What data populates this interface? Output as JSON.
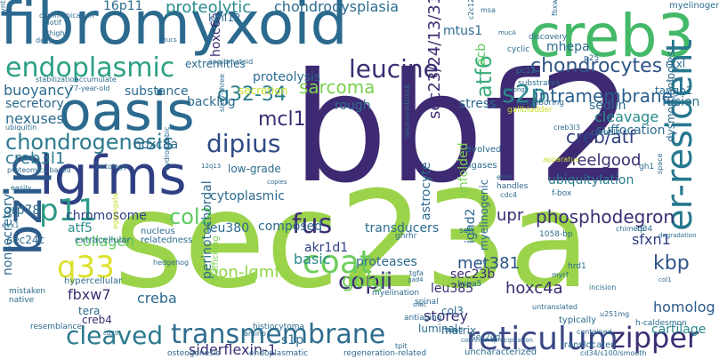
{
  "words": [
    {
      "text": "sec23a",
      "color": "#9bd34a",
      "rotated": false
    },
    {
      "text": "bbf2",
      "color": "#3e2a72",
      "rotated": false
    },
    {
      "text": "fibromyxoid",
      "color": "#2b6a8e",
      "rotated": false
    },
    {
      "text": "oasis",
      "color": "#2b6a8e",
      "rotated": false
    },
    {
      "text": "lgfms",
      "color": "#2f3f83",
      "rotated": false
    },
    {
      "text": "creb3",
      "color": "#44b968",
      "rotated": false
    },
    {
      "text": "bzip",
      "color": "#2c5a8a",
      "rotated": true
    },
    {
      "text": "reticulum",
      "color": "#3a4584",
      "rotated": false
    },
    {
      "text": "transmembrane",
      "color": "#2e6d8e",
      "rotated": false
    },
    {
      "text": "coat",
      "color": "#6ccd5a",
      "rotated": false
    },
    {
      "text": "er-resident",
      "color": "#26788e",
      "rotated": true
    },
    {
      "text": "endoplasmic",
      "color": "#2ca084",
      "rotated": false
    },
    {
      "text": "leucine",
      "color": "#3a2e73",
      "rotated": false
    },
    {
      "text": "atf6",
      "color": "#37ad79",
      "rotated": true
    },
    {
      "text": "s2p",
      "color": "#2a8b8c",
      "rotated": false
    },
    {
      "text": "dipius",
      "color": "#2f4b86",
      "rotated": false
    },
    {
      "text": "p11",
      "color": "#2b9a88",
      "rotated": false
    },
    {
      "text": "q33",
      "color": "#dbe12b",
      "rotated": false
    },
    {
      "text": "fus",
      "color": "#3a2e73",
      "rotated": false
    },
    {
      "text": "zipper",
      "color": "#3a2e73",
      "rotated": false
    },
    {
      "text": "cleaved",
      "color": "#2c7a8e",
      "rotated": false
    },
    {
      "text": "chondrogenesis",
      "color": "#2c7a8e",
      "rotated": false
    },
    {
      "text": "chondrocytes",
      "color": "#2f5488",
      "rotated": false
    },
    {
      "text": "intramembrane",
      "color": "#2a5f8d",
      "rotated": false
    },
    {
      "text": "q32-34",
      "color": "#2b7d8e",
      "rotated": false
    },
    {
      "text": "copii",
      "color": "#3a2e73",
      "rotated": false
    },
    {
      "text": "kbp",
      "color": "#2f5488",
      "rotated": false
    },
    {
      "text": "col2",
      "color": "#5ec962",
      "rotated": false
    },
    {
      "text": "golgi",
      "color": "#6ccd5a",
      "rotated": false
    },
    {
      "text": "sarcoma",
      "color": "#7ad151",
      "rotated": false
    },
    {
      "text": "mcl1",
      "color": "#3a2e73",
      "rotated": false
    },
    {
      "text": "creb3l1",
      "color": "#2c7a8e",
      "rotated": false
    },
    {
      "text": "creb/atf",
      "color": "#2f3f83",
      "rotated": false
    },
    {
      "text": "phosphodegron",
      "color": "#3a2e73",
      "rotated": false
    },
    {
      "text": "proteolytic",
      "color": "#2a8b8c",
      "rotated": false
    },
    {
      "text": "chondrodysplasia",
      "color": "#2c6b8e",
      "rotated": false
    },
    {
      "text": "sec23/24/13/31",
      "color": "#3e2a72",
      "rotated": true
    },
    {
      "text": "hoxc6a",
      "color": "#3a2e73",
      "rotated": true
    },
    {
      "text": "non-lgmfs",
      "color": "#8fd645",
      "rotated": false
    },
    {
      "text": "homolog",
      "color": "#2c5a8a",
      "rotated": false
    },
    {
      "text": "cartilage",
      "color": "#2a8b8c",
      "rotated": false
    },
    {
      "text": "siderflexin-1",
      "color": "#3a2e73",
      "rotated": false
    },
    {
      "text": "storey",
      "color": "#3a2e73",
      "rotated": false
    },
    {
      "text": "basic",
      "color": "#2a8b8c",
      "rotated": false
    },
    {
      "text": "feelgood",
      "color": "#3a2e73",
      "rotated": false
    },
    {
      "text": "cleavage",
      "color": "#2a8b8c",
      "rotated": false
    },
    {
      "text": "ubiquitylation",
      "color": "#2b7d8e",
      "rotated": false
    },
    {
      "text": "unfolded",
      "color": "#7ad151",
      "rotated": true
    },
    {
      "text": "creba",
      "color": "#2c6b8e",
      "rotated": false
    },
    {
      "text": "s1p",
      "color": "#2c6b8e",
      "rotated": false
    },
    {
      "text": "met381",
      "color": "#2f5488",
      "rotated": false
    },
    {
      "text": "hoxc4a",
      "color": "#3a2e73",
      "rotated": false
    },
    {
      "text": "fbxw7",
      "color": "#3a2e73",
      "rotated": false
    },
    {
      "text": "atf5",
      "color": "#2a8b8c",
      "rotated": false
    },
    {
      "text": "upr",
      "color": "#3a2e73",
      "rotated": false
    },
    {
      "text": "sfxn1",
      "color": "#2f3f83",
      "rotated": false
    },
    {
      "text": "collagen",
      "color": "#5ec962",
      "rotated": false
    },
    {
      "text": "nexuses",
      "color": "#2c6b8e",
      "rotated": false
    },
    {
      "text": "secretory",
      "color": "#2c6b8e",
      "rotated": false
    },
    {
      "text": "buoyancy",
      "color": "#2c6b8e",
      "rotated": false
    },
    {
      "text": "substance",
      "color": "#2c6b8e",
      "rotated": false
    },
    {
      "text": "proteolysis",
      "color": "#2c6b8e",
      "rotated": false
    },
    {
      "text": "rough",
      "color": "#2c6b8e",
      "rotated": false
    },
    {
      "text": "stress",
      "color": "#2c6b8e",
      "rotated": false
    },
    {
      "text": "suffocation",
      "color": "#2c6b8e",
      "rotated": false
    },
    {
      "text": "backlog",
      "color": "#2c6b8e",
      "rotated": false
    },
    {
      "text": "sedlin",
      "color": "#2c6b8e",
      "rotated": false
    },
    {
      "text": "fusion",
      "color": "#2c6b8e",
      "rotated": false
    },
    {
      "text": "tango1",
      "color": "#2c6b8e",
      "rotated": false
    },
    {
      "text": "mhepa",
      "color": "#2c6b8e",
      "rotated": false
    },
    {
      "text": "mtus1",
      "color": "#2c6b8e",
      "rotated": false
    },
    {
      "text": "klhl12",
      "color": "#2c6b8e",
      "rotated": false
    },
    {
      "text": "16p11",
      "color": "#2c6b8e",
      "rotated": false
    },
    {
      "text": "extremities",
      "color": "#2c6b8e",
      "rotated": false
    },
    {
      "text": "secretion",
      "color": "#c6df2a",
      "rotated": false
    },
    {
      "text": "hoxc8a",
      "color": "#2c6b8e",
      "rotated": false
    },
    {
      "text": "low-grade",
      "color": "#2c6b8e",
      "rotated": false
    },
    {
      "text": "chromosome",
      "color": "#2f3f83",
      "rotated": false
    },
    {
      "text": "sec24c",
      "color": "#2c6b8e",
      "rotated": false
    },
    {
      "text": "grp78",
      "color": "#2c6b8e",
      "rotated": false
    },
    {
      "text": "cytoplasmic",
      "color": "#2c6b8e",
      "rotated": false
    },
    {
      "text": "composed",
      "color": "#2c6b8e",
      "rotated": false
    },
    {
      "text": "leu380",
      "color": "#2c6b8e",
      "rotated": false
    },
    {
      "text": "akr1d1",
      "color": "#2f3f83",
      "rotated": false
    },
    {
      "text": "proteases",
      "color": "#2c6b8e",
      "rotated": false
    },
    {
      "text": "leu385",
      "color": "#3a2e73",
      "rotated": false
    },
    {
      "text": "sec23b",
      "color": "#3a2e73",
      "rotated": false
    },
    {
      "text": "col3",
      "color": "#2c6b8e",
      "rotated": false
    },
    {
      "text": "tera",
      "color": "#2c6b8e",
      "rotated": false
    },
    {
      "text": "astrocyte",
      "color": "#2c6b8e",
      "rotated": true
    },
    {
      "text": "transducers",
      "color": "#2c6b8e",
      "rotated": false
    },
    {
      "text": "ighd2",
      "color": "#2c6b8e",
      "rotated": true
    },
    {
      "text": "myelinogenic",
      "color": "#2c6b8e",
      "rotated": true
    },
    {
      "text": "perinotochordal",
      "color": "#2c6b8e",
      "rotated": true
    },
    {
      "text": "nonsecretory",
      "color": "#2c6b8e",
      "rotated": true
    },
    {
      "text": "creb4",
      "color": "#3a2e73",
      "rotated": false
    },
    {
      "text": "luminal",
      "color": "#2c6b8e",
      "rotated": false
    },
    {
      "text": "matrix",
      "color": "#2c6b8e",
      "rotated": false
    },
    {
      "text": "acb",
      "color": "#5ec962",
      "rotated": true
    },
    {
      "text": "dysmorphologies",
      "color": "#2c6b8e",
      "rotated": true
    },
    {
      "text": "communication",
      "color": "#2c6b8e",
      "rotated": false
    },
    {
      "text": "myelinogenesis",
      "color": "#2c6b8e",
      "rotated": false
    },
    {
      "text": "rxxl",
      "color": "#2c6b8e",
      "rotated": false
    },
    {
      "text": "cord",
      "color": "#2c6b8e",
      "rotated": false
    },
    {
      "text": "osteogenesis",
      "color": "#2c6b8e",
      "rotated": false
    },
    {
      "text": "endoplasmatic",
      "color": "#2c6b8e",
      "rotated": false
    },
    {
      "text": "regeneration-related",
      "color": "#2c6b8e",
      "rotated": false
    },
    {
      "text": "uncharacterized",
      "color": "#2c6b8e",
      "rotated": false
    },
    {
      "text": "translocates",
      "color": "#2c6b8e",
      "rotated": false
    },
    {
      "text": "typically",
      "color": "#2c6b8e",
      "rotated": false
    },
    {
      "text": "contained",
      "color": "#2c6b8e",
      "rotated": false
    },
    {
      "text": "h-caldesmon",
      "color": "#2c6b8e",
      "rotated": false
    },
    {
      "text": "hypercellular",
      "color": "#2c6b8e",
      "rotated": false
    },
    {
      "text": "extracellular",
      "color": "#2c6b8e",
      "rotated": false
    },
    {
      "text": "relatedness",
      "color": "#2c6b8e",
      "rotated": false
    },
    {
      "text": "nucleus",
      "color": "#2c6b8e",
      "rotated": false
    },
    {
      "text": "mistaken",
      "color": "#2c6b8e",
      "rotated": false
    },
    {
      "text": "native",
      "color": "#2c6b8e",
      "rotated": false
    },
    {
      "text": "resemblance",
      "color": "#2c6b8e",
      "rotated": false
    },
    {
      "text": "hedgehog",
      "color": "#2c6b8e",
      "rotated": false
    },
    {
      "text": "trafficking",
      "color": "#7ad151",
      "rotated": true
    },
    {
      "text": "histiocytoma",
      "color": "#2c6b8e",
      "rotated": false
    },
    {
      "text": "antiaging",
      "color": "#2c6b8e",
      "rotated": false
    },
    {
      "text": "myelination",
      "color": "#2c6b8e",
      "rotated": false
    },
    {
      "text": "spinal",
      "color": "#2c6b8e",
      "rotated": false
    },
    {
      "text": "ghrhr",
      "color": "#2c6b8e",
      "rotated": false
    },
    {
      "text": "hspa5",
      "color": "#2c6b8e",
      "rotated": false
    },
    {
      "text": "soft",
      "color": "#2c6b8e",
      "rotated": false
    },
    {
      "text": "chimera",
      "color": "#2c6b8e",
      "rotated": false
    },
    {
      "text": "1058-bp",
      "color": "#2c6b8e",
      "rotated": false
    },
    {
      "text": "hrd1",
      "color": "#2c6b8e",
      "rotated": false
    },
    {
      "text": "q34",
      "color": "#2c6b8e",
      "rotated": false
    },
    {
      "text": "evolved",
      "color": "#2c6b8e",
      "rotated": false
    },
    {
      "text": "ligases",
      "color": "#2c6b8e",
      "rotated": false
    },
    {
      "text": "ecm",
      "color": "#2c6b8e",
      "rotated": false
    },
    {
      "text": "handles",
      "color": "#2c6b8e",
      "rotated": false
    },
    {
      "text": "cdc4",
      "color": "#2c6b8e",
      "rotated": false
    },
    {
      "text": "f-box",
      "color": "#2c6b8e",
      "rotated": false
    },
    {
      "text": "apparatus",
      "color": "#c6df2a",
      "rotated": false
    },
    {
      "text": "neighboring",
      "color": "#2c6b8e",
      "rotated": false
    },
    {
      "text": "belongs",
      "color": "#2c6b8e",
      "rotated": false
    },
    {
      "text": "gallbladder",
      "color": "#c6df2a",
      "rotated": false
    },
    {
      "text": "creb3l4",
      "color": "#2c6b8e",
      "rotated": false
    },
    {
      "text": "gh1",
      "color": "#2c6b8e",
      "rotated": false
    },
    {
      "text": "substrates",
      "color": "#2c6b8e",
      "rotated": false
    },
    {
      "text": "discovery",
      "color": "#2c6b8e",
      "rotated": false
    },
    {
      "text": "cyclic",
      "color": "#2c6b8e",
      "rotated": false
    },
    {
      "text": "p25",
      "color": "#2c6b8e",
      "rotated": false
    },
    {
      "text": "pc12",
      "color": "#2c6b8e",
      "rotated": false
    },
    {
      "text": "msa",
      "color": "#2c6b8e",
      "rotated": false
    },
    {
      "text": "motif",
      "color": "#2c6b8e",
      "rotated": false
    },
    {
      "text": "thigh",
      "color": "#2c6b8e",
      "rotated": false
    },
    {
      "text": "deep",
      "color": "#2c6b8e",
      "rotated": false
    },
    {
      "text": "accumulate",
      "color": "#2c6b8e",
      "rotated": false
    },
    {
      "text": "stabilization",
      "color": "#2c6b8e",
      "rotated": false
    },
    {
      "text": "angiomatoid",
      "color": "#2c6b8e",
      "rotated": false
    },
    {
      "text": "77-year-old",
      "color": "#2c6b8e",
      "rotated": false
    },
    {
      "text": "ubiquitin",
      "color": "#2c6b8e",
      "rotated": false
    },
    {
      "text": "proteomics-based",
      "color": "#2c6b8e",
      "rotated": false
    },
    {
      "text": "ontology",
      "color": "#2c6b8e",
      "rotated": false
    },
    {
      "text": "12q13",
      "color": "#2c6b8e",
      "rotated": false
    },
    {
      "text": "copies",
      "color": "#2c6b8e",
      "rotated": false
    },
    {
      "text": "easily",
      "color": "#2c6b8e",
      "rotated": false
    },
    {
      "text": "evx1",
      "color": "#2c6b8e",
      "rotated": false
    },
    {
      "text": "synthesis",
      "color": "#2c6b8e",
      "rotated": true
    },
    {
      "text": "mucs",
      "color": "#2c6b8e",
      "rotated": false
    },
    {
      "text": "cre",
      "color": "#2c6b8e",
      "rotated": false
    },
    {
      "text": "space",
      "color": "#2c6b8e",
      "rotated": true
    },
    {
      "text": "degradation",
      "color": "#2c6b8e",
      "rotated": false
    },
    {
      "text": "col1",
      "color": "#2c6b8e",
      "rotated": false
    },
    {
      "text": "u251mg",
      "color": "#2c6b8e",
      "rotated": false
    },
    {
      "text": "untranslated",
      "color": "#2c6b8e",
      "rotated": false
    },
    {
      "text": "tpit",
      "color": "#2c6b8e",
      "rotated": false
    },
    {
      "text": "sec24d",
      "color": "#2c6b8e",
      "rotated": false
    },
    {
      "text": "band",
      "color": "#2c6b8e",
      "rotated": false
    },
    {
      "text": "cd34/s100/smooth",
      "color": "#2c6b8e",
      "rotated": false
    },
    {
      "text": "coimmunoprecipitation",
      "color": "#2c6b8e",
      "rotated": false
    },
    {
      "text": "tgfa",
      "color": "#2c6b8e",
      "rotated": false
    },
    {
      "text": "siiac",
      "color": "#2c6b8e",
      "rotated": false
    },
    {
      "text": "incision",
      "color": "#2c6b8e",
      "rotated": false
    },
    {
      "text": "myrf",
      "color": "#2c6b8e",
      "rotated": false
    },
    {
      "text": "gad4",
      "color": "#2c6b8e",
      "rotated": false
    },
    {
      "text": "cd99",
      "color": "#2c6b8e",
      "rotated": false
    },
    {
      "text": "amino",
      "color": "#2c6b8e",
      "rotated": false
    },
    {
      "text": "sixty-three",
      "color": "#2c6b8e",
      "rotated": true
    },
    {
      "text": "hydrophobic",
      "color": "#2c6b8e",
      "rotated": true
    },
    {
      "text": "neuron-intrinsic",
      "color": "#2c6b8e",
      "rotated": true
    },
    {
      "text": "aggregate",
      "color": "#c6df2a",
      "rotated": true
    },
    {
      "text": "creb3l3",
      "color": "#2c6b8e",
      "rotated": false
    },
    {
      "text": "fbxw7alpha",
      "color": "#2c6b8e",
      "rotated": true
    },
    {
      "text": "c2c12",
      "color": "#2c6b8e",
      "rotated": true
    },
    {
      "text": "mucA",
      "color": "#2c6b8e",
      "rotated": false
    }
  ]
}
